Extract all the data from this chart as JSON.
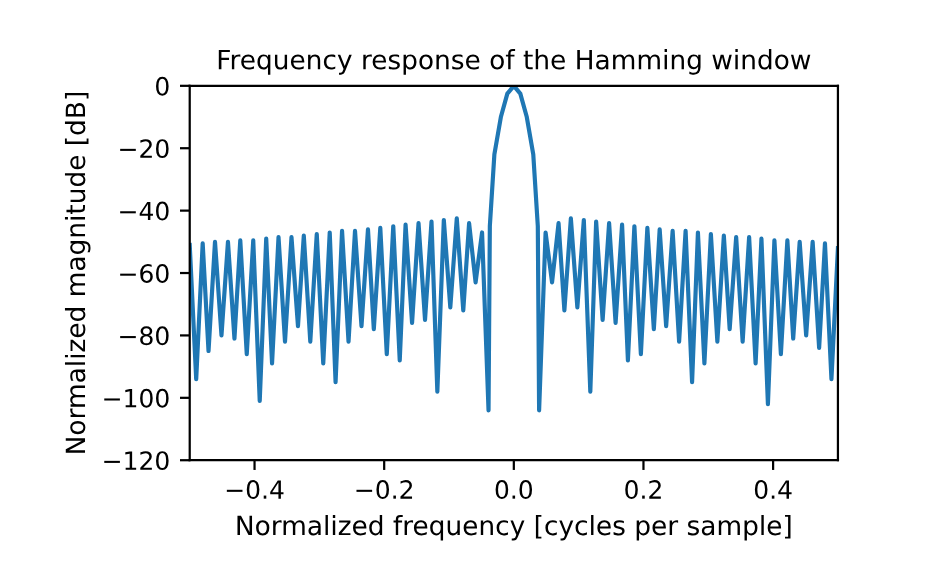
{
  "chart_data": {
    "type": "line",
    "title": "Frequency response of the Hamming window",
    "xlabel": "Normalized frequency [cycles per sample]",
    "ylabel": "Normalized magnitude [dB]",
    "xlim": [
      -0.5,
      0.5
    ],
    "xticks": [
      {
        "value": -0.4,
        "label": "−0.4"
      },
      {
        "value": -0.2,
        "label": "−0.2"
      },
      {
        "value": 0,
        "label": "0.0"
      },
      0.2,
      0.4
    ],
    "ylim": [
      -120,
      0
    ],
    "yticks": [
      {
        "value": -120,
        "label": "−120"
      },
      {
        "value": -100,
        "label": "−100"
      },
      {
        "value": -80,
        "label": "−80"
      },
      {
        "value": -60,
        "label": "−60"
      },
      {
        "value": -40,
        "label": "−40"
      },
      {
        "value": -20,
        "label": "−20"
      },
      0
    ],
    "grid": false,
    "series": [
      {
        "color": "#1f77b4",
        "x": [
          -0.5,
          -0.49,
          -0.48,
          -0.471,
          -0.461,
          -0.451,
          -0.441,
          -0.431,
          -0.422,
          -0.412,
          -0.402,
          -0.392,
          -0.382,
          -0.373,
          -0.363,
          -0.353,
          -0.343,
          -0.333,
          -0.324,
          -0.314,
          -0.304,
          -0.294,
          -0.284,
          -0.275,
          -0.265,
          -0.255,
          -0.245,
          -0.235,
          -0.225,
          -0.216,
          -0.206,
          -0.196,
          -0.186,
          -0.176,
          -0.167,
          -0.157,
          -0.147,
          -0.137,
          -0.127,
          -0.118,
          -0.108,
          -0.098,
          -0.088,
          -0.078,
          -0.069,
          -0.059,
          -0.049,
          -0.039,
          -0.037,
          -0.03,
          -0.02,
          -0.01,
          0,
          0.01,
          0.02,
          0.03,
          0.037,
          0.039,
          0.049,
          0.059,
          0.069,
          0.078,
          0.088,
          0.098,
          0.108,
          0.118,
          0.127,
          0.137,
          0.147,
          0.157,
          0.167,
          0.176,
          0.186,
          0.196,
          0.206,
          0.216,
          0.225,
          0.235,
          0.245,
          0.255,
          0.265,
          0.275,
          0.284,
          0.294,
          0.304,
          0.314,
          0.324,
          0.333,
          0.343,
          0.353,
          0.363,
          0.373,
          0.382,
          0.392,
          0.402,
          0.412,
          0.422,
          0.431,
          0.441,
          0.451,
          0.461,
          0.471,
          0.48,
          0.49,
          0.5
        ],
        "values": [
          -51,
          -94,
          -50.5,
          -85,
          -50,
          -80,
          -50,
          -81,
          -49.5,
          -86,
          -49.5,
          -101,
          -49,
          -89,
          -48.5,
          -82,
          -48.5,
          -77,
          -48,
          -82,
          -47.5,
          -89,
          -47,
          -95,
          -46.5,
          -82,
          -46.5,
          -77,
          -46,
          -78,
          -45.5,
          -86,
          -45,
          -88,
          -44.5,
          -76,
          -44,
          -75,
          -43.5,
          -98,
          -43,
          -71,
          -42.5,
          -72,
          -44,
          -63,
          -47,
          -104,
          -45,
          -22,
          -10,
          -2.5,
          0,
          -2.5,
          -10,
          -22,
          -45,
          -104,
          -47,
          -63,
          -44,
          -72,
          -42.5,
          -71,
          -43,
          -98,
          -43.5,
          -75,
          -44,
          -76,
          -44.5,
          -88,
          -45,
          -86,
          -45.5,
          -78,
          -46,
          -77,
          -46.5,
          -82,
          -46.5,
          -95,
          -47,
          -89,
          -47.5,
          -82,
          -48,
          -78,
          -48.5,
          -82,
          -48.5,
          -89,
          -49,
          -102,
          -49.5,
          -86,
          -49.5,
          -81,
          -50,
          -80,
          -50,
          -84,
          -50.5,
          -94,
          -52
        ]
      }
    ]
  }
}
